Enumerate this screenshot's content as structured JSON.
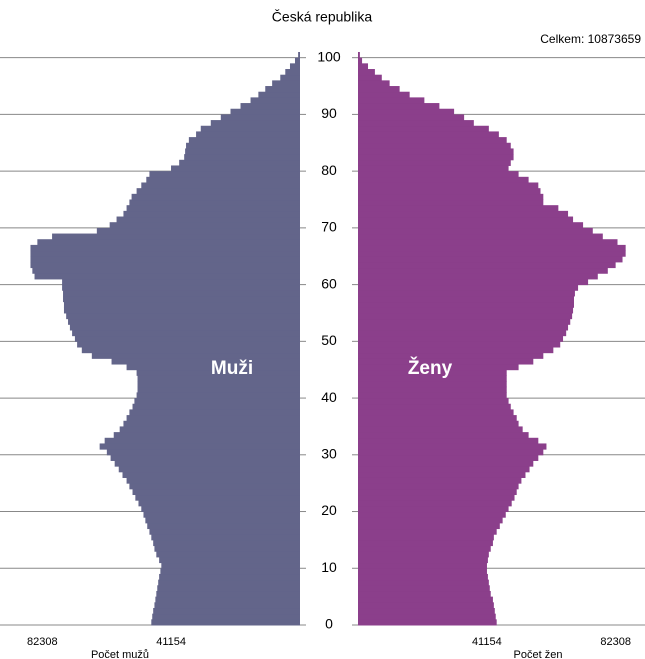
{
  "chart_data": {
    "type": "pyramid",
    "title": "Česká republika",
    "annotation": "Celkem: 10873659",
    "xlabels": [
      "Počet mužů",
      "Počet žen"
    ],
    "x": [
      0,
      1,
      2,
      3,
      4,
      5,
      6,
      7,
      8,
      9,
      10,
      11,
      12,
      13,
      14,
      15,
      16,
      17,
      18,
      19,
      20,
      21,
      22,
      23,
      24,
      25,
      26,
      27,
      28,
      29,
      30,
      31,
      32,
      33,
      34,
      35,
      36,
      37,
      38,
      39,
      40,
      41,
      42,
      43,
      44,
      45,
      46,
      47,
      48,
      49,
      50,
      51,
      52,
      53,
      54,
      55,
      56,
      57,
      58,
      59,
      60,
      61,
      62,
      63,
      64,
      65,
      66,
      67,
      68,
      69,
      70,
      71,
      72,
      73,
      74,
      75,
      76,
      77,
      78,
      79,
      80,
      81,
      82,
      83,
      84,
      85,
      86,
      87,
      88,
      89,
      90,
      91,
      92,
      93,
      94,
      95,
      96,
      97,
      98,
      99,
      100
    ],
    "ylim": [
      0,
      101
    ],
    "yticks": [
      0,
      10,
      20,
      30,
      40,
      50,
      60,
      70,
      80,
      90,
      100
    ],
    "xlim": [
      0,
      92000
    ],
    "xticks": [
      41154,
      82308
    ],
    "grid": true,
    "series": [
      {
        "name": "Muži",
        "color": "#63658a",
        "values": [
          47500,
          47200,
          46900,
          46500,
          46200,
          45900,
          45600,
          45300,
          45000,
          44600,
          44300,
          45000,
          45900,
          46500,
          46900,
          47500,
          48100,
          48800,
          49400,
          50000,
          50700,
          51600,
          52600,
          53500,
          54500,
          55400,
          56700,
          57900,
          59200,
          60500,
          61700,
          64000,
          62400,
          59500,
          57600,
          56400,
          55400,
          54500,
          53500,
          52900,
          52200,
          51900,
          51900,
          51900,
          52200,
          55400,
          60200,
          66500,
          69700,
          71200,
          71900,
          72800,
          73500,
          74100,
          74700,
          75400,
          75400,
          75700,
          75700,
          76000,
          76000,
          84800,
          85500,
          86100,
          86100,
          86100,
          86100,
          83900,
          79200,
          64900,
          60800,
          58600,
          56400,
          55400,
          54500,
          53800,
          52200,
          50700,
          49100,
          48100,
          41200,
          38600,
          37000,
          36700,
          36400,
          35500,
          33200,
          31700,
          28500,
          25300,
          22200,
          19000,
          15800,
          13300,
          11100,
          8900,
          6300,
          4700,
          3200,
          1600,
          600
        ]
      },
      {
        "name": "Ženy",
        "color": "#8b3f8b",
        "values": [
          44300,
          44000,
          43700,
          43400,
          43100,
          42400,
          42100,
          41800,
          41500,
          41200,
          41200,
          41500,
          41800,
          42400,
          43100,
          43400,
          44300,
          45300,
          46200,
          47200,
          48100,
          49100,
          50000,
          50700,
          51300,
          52200,
          53500,
          54800,
          56000,
          57600,
          59200,
          60200,
          57600,
          54500,
          52600,
          51300,
          50700,
          49700,
          48800,
          48100,
          47500,
          47500,
          47500,
          47500,
          47500,
          51300,
          56000,
          59200,
          62400,
          64600,
          65500,
          66500,
          67100,
          67800,
          68400,
          68700,
          69000,
          69000,
          69300,
          70300,
          73500,
          76600,
          79800,
          82300,
          84500,
          85500,
          85500,
          82900,
          78200,
          75000,
          71900,
          68700,
          67100,
          64000,
          59200,
          59200,
          58300,
          57600,
          54500,
          51300,
          48100,
          48800,
          49700,
          49700,
          48800,
          47500,
          45000,
          41800,
          37000,
          33900,
          30700,
          26000,
          21200,
          16500,
          13300,
          10100,
          7600,
          5400,
          3200,
          1300,
          600
        ]
      }
    ]
  }
}
